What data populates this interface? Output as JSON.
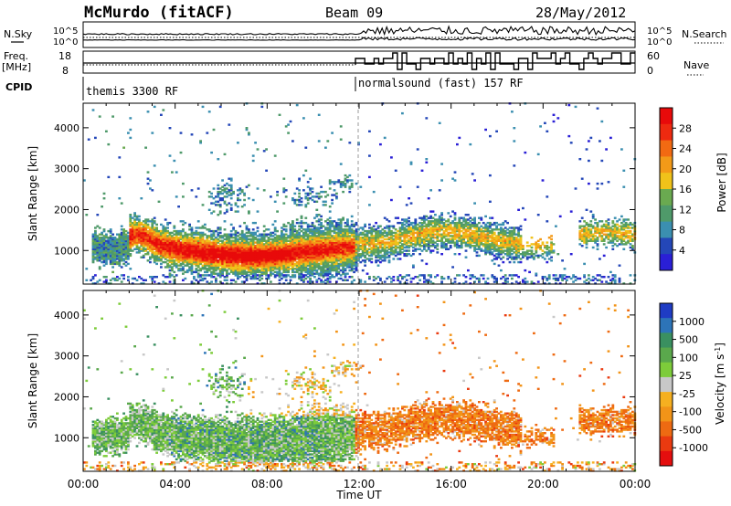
{
  "header": {
    "title": "McMurdo (fitACF)",
    "beam": "Beam 09",
    "date": "28/May/2012"
  },
  "chart_data": [
    {
      "type": "line",
      "panel": "noise",
      "left_label": "N.Sky",
      "left_ticks": [
        "10^5",
        "10^0"
      ],
      "right_label": "N.Search",
      "right_ticks": [
        "10^5",
        "10^0"
      ]
    },
    {
      "type": "line",
      "panel": "frequency",
      "left_label_line1": "Freq.",
      "left_label_line2": "[MHz]",
      "left_ticks": [
        18,
        8
      ],
      "right_label": "Nave",
      "right_ticks": [
        60,
        0
      ]
    },
    {
      "type": "table",
      "panel": "cpid",
      "label": "CPID",
      "modes": [
        {
          "name": "themis 3300 RF",
          "start_ut": "00:00",
          "end_ut": "12:00"
        },
        {
          "name": "normalsound (fast) 157 RF",
          "start_ut": "12:00",
          "end_ut": "24:00"
        }
      ]
    },
    {
      "type": "heatmap",
      "panel": "power",
      "ylabel": "Slant Range [km]",
      "yticks": [
        1000,
        2000,
        3000,
        4000
      ],
      "ylim": [
        180,
        4600
      ],
      "xlim": [
        0,
        24
      ],
      "colorbar_label": "Power [dB]",
      "colorbar_ticks": [
        4,
        8,
        12,
        16,
        20,
        24,
        28
      ],
      "colorbar_colors": [
        "#2a1fd6",
        "#2447b8",
        "#3b8fb0",
        "#4f9a6a",
        "#6aaa50",
        "#f0c21a",
        "#f39a18",
        "#f26a12",
        "#ee2a10",
        "#e80a0a"
      ]
    },
    {
      "type": "heatmap",
      "panel": "velocity",
      "ylabel": "Slant Range [km]",
      "yticks": [
        1000,
        2000,
        3000,
        4000
      ],
      "ylim": [
        180,
        4600
      ],
      "xlim": [
        0,
        24
      ],
      "xticks": [
        "00:00",
        "04:00",
        "08:00",
        "12:00",
        "16:00",
        "20:00",
        "00:00"
      ],
      "xlabel": "Time UT",
      "colorbar_label_main": "Velocity [m s",
      "colorbar_label_sup": "-1",
      "colorbar_label_end": "]",
      "colorbar_ticks": [
        1000,
        500,
        100,
        25,
        -25,
        -100,
        -500,
        -1000
      ],
      "colorbar_colors": [
        "#1f3cc4",
        "#2d74b8",
        "#3a9060",
        "#5aa84c",
        "#7dcc3a",
        "#c8c8c8",
        "#f6b020",
        "#f29418",
        "#ee6a12",
        "#ea3a10",
        "#e40e0e"
      ]
    }
  ]
}
